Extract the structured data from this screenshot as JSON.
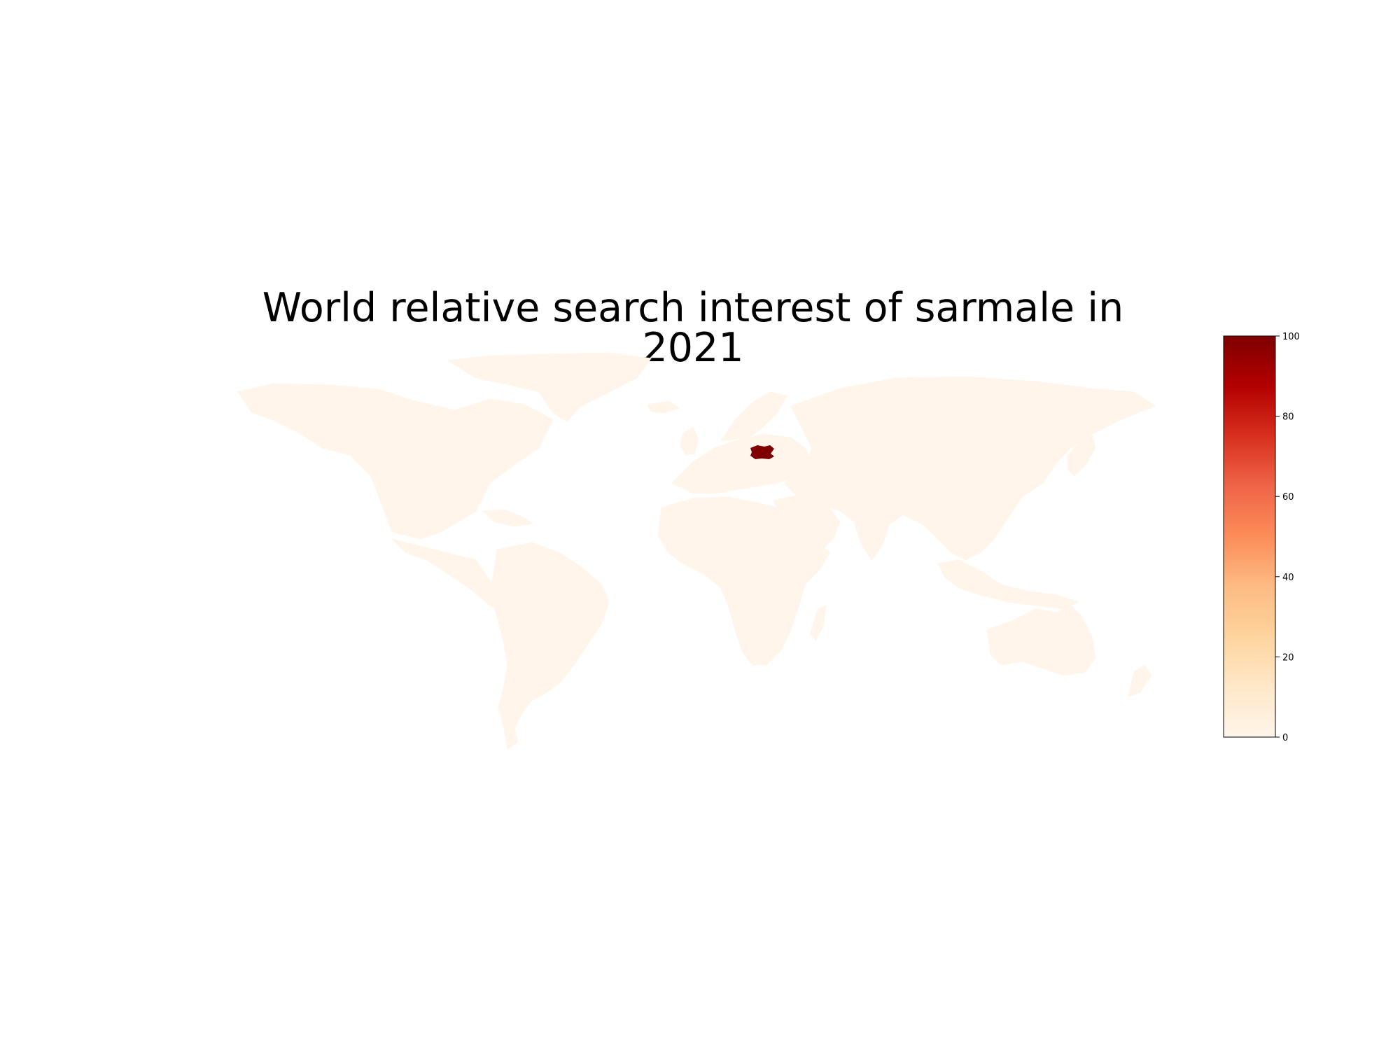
{
  "title": "World relative search interest of sarmale in 2021",
  "colors": {
    "land_low": "#fff5eb",
    "highlight": "#7f0000",
    "scale": [
      "#fff5eb",
      "#fee8c8",
      "#fdd49e",
      "#fdbb84",
      "#fc8d59",
      "#ef6548",
      "#d7301f",
      "#b30000",
      "#7f0000"
    ]
  },
  "chart_data": {
    "type": "choropleth",
    "title": "World relative search interest of sarmale in 2021",
    "colorbar": {
      "min": 0,
      "max": 100,
      "ticks": [
        "0",
        "20",
        "40",
        "60",
        "80",
        "100"
      ],
      "colormap": "OrRd"
    },
    "regions": [
      {
        "name": "Romania",
        "value": 100
      },
      {
        "name": "Rest of world",
        "value": 0
      }
    ]
  }
}
